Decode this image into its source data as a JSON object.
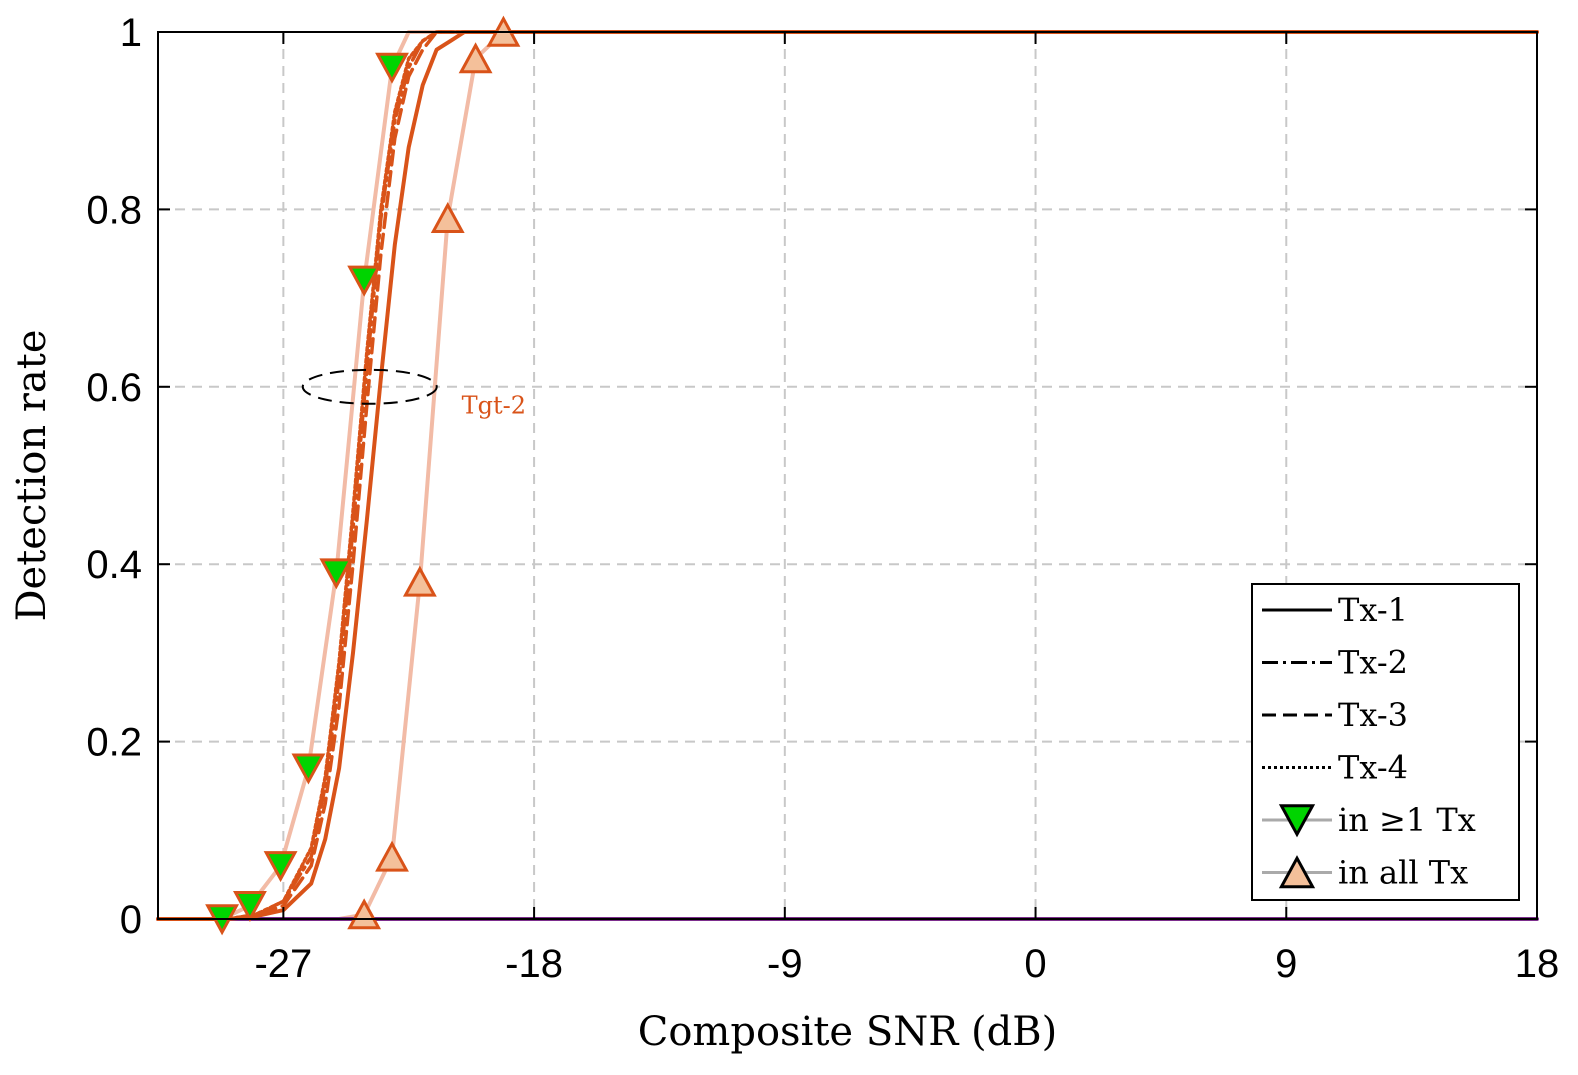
{
  "chart_data": {
    "type": "line",
    "xlabel": "Composite SNR (dB)",
    "ylabel": "Detection rate",
    "xlim": [
      -31.5,
      18
    ],
    "ylim": [
      0,
      1
    ],
    "xticks": [
      -27,
      -18,
      -9,
      0,
      9,
      18
    ],
    "yticks": [
      0,
      0.2,
      0.4,
      0.6,
      0.8,
      1
    ],
    "xtick_labels": [
      "-27",
      "-18",
      "-9",
      "0",
      "9",
      "18"
    ],
    "ytick_labels": [
      "0",
      "0.2",
      "0.4",
      "0.6",
      "0.8",
      "1"
    ],
    "grid": true,
    "legend_position": "bottom-right",
    "colors": {
      "main": "#d95319",
      "envelope": "#f2bba6",
      "purple": "#7e2f8e",
      "grid": "#c8c8c8",
      "marker_down_fill": "#00d400",
      "marker_up_fill": "#f4c09a"
    },
    "annotation": {
      "text": "Tgt-2",
      "x": -20.6,
      "y": 0.57
    },
    "series": [
      {
        "name": "Tx-1",
        "style": "solid",
        "color": "#d95319",
        "x": [
          -31.5,
          -29,
          -28,
          -27,
          -26,
          -25.5,
          -25,
          -24.5,
          -24,
          -23.5,
          -23,
          -22.5,
          -22,
          -21.5,
          -21,
          -20.5,
          -20,
          -19.5,
          -18,
          18
        ],
        "y": [
          0,
          0,
          0.003,
          0.01,
          0.04,
          0.09,
          0.17,
          0.3,
          0.45,
          0.61,
          0.76,
          0.87,
          0.94,
          0.98,
          0.99,
          1,
          1,
          1,
          1,
          1
        ]
      },
      {
        "name": "Tx-2",
        "style": "dashdot",
        "color": "#d95319",
        "x": [
          -31.5,
          -29,
          -28,
          -27,
          -26,
          -25.5,
          -25,
          -24.5,
          -24,
          -23.5,
          -23,
          -22.5,
          -22,
          -21.5,
          -21,
          -20.5,
          -20,
          -19.5,
          -18,
          18
        ],
        "y": [
          0,
          0,
          0.005,
          0.02,
          0.07,
          0.15,
          0.27,
          0.44,
          0.62,
          0.79,
          0.9,
          0.96,
          0.99,
          1,
          1,
          1,
          1,
          1,
          1,
          1
        ]
      },
      {
        "name": "Tx-3",
        "style": "dashed",
        "color": "#d95319",
        "x": [
          -31.5,
          -29,
          -28,
          -27,
          -26,
          -25.5,
          -25,
          -24.5,
          -24,
          -23.5,
          -23,
          -22.5,
          -22,
          -21.5,
          -21,
          -20.5,
          -20,
          -19.5,
          -18,
          18
        ],
        "y": [
          0,
          0,
          0.004,
          0.015,
          0.06,
          0.13,
          0.24,
          0.4,
          0.58,
          0.75,
          0.88,
          0.95,
          0.98,
          1,
          1,
          1,
          1,
          1,
          1,
          1
        ]
      },
      {
        "name": "Tx-4",
        "style": "dotted",
        "color": "#d95319",
        "x": [
          -31.5,
          -29,
          -28,
          -27,
          -26,
          -25.5,
          -25,
          -24.5,
          -24,
          -23.5,
          -23,
          -22.5,
          -22,
          -21.5,
          -21,
          -20.5,
          -20,
          -19.5,
          -18,
          18
        ],
        "y": [
          0,
          0,
          0.005,
          0.02,
          0.08,
          0.16,
          0.29,
          0.46,
          0.64,
          0.8,
          0.91,
          0.97,
          0.99,
          1,
          1,
          1,
          1,
          1,
          1,
          1
        ]
      },
      {
        "name": "in ≥1 Tx",
        "style": "solid",
        "color": "#f2bba6",
        "marker": "triangle-down",
        "x": [
          -31.5,
          -29.2,
          -28.2,
          -27.1,
          -26.1,
          -25.1,
          -24.1,
          -23.1,
          -22.5,
          -18,
          18
        ],
        "y": [
          0,
          0,
          0.015,
          0.06,
          0.17,
          0.39,
          0.72,
          0.96,
          1,
          1,
          1
        ],
        "marker_x": [
          -29.2,
          -28.2,
          -27.1,
          -26.1,
          -25.1,
          -24.1,
          -23.1
        ],
        "marker_y": [
          0,
          0.015,
          0.06,
          0.17,
          0.39,
          0.72,
          0.96
        ]
      },
      {
        "name": "in all Tx",
        "style": "solid",
        "color": "#f2bba6",
        "marker": "triangle-up",
        "x": [
          -31.5,
          -25,
          -24.1,
          -23.1,
          -22.1,
          -21.1,
          -20.1,
          -19.1,
          -18,
          18
        ],
        "y": [
          0,
          0,
          0.005,
          0.07,
          0.38,
          0.79,
          0.97,
          1,
          1,
          1
        ],
        "marker_x": [
          -24.1,
          -23.1,
          -22.1,
          -21.1,
          -20.1,
          -19.1
        ],
        "marker_y": [
          0.005,
          0.07,
          0.38,
          0.79,
          0.97,
          1
        ]
      },
      {
        "name": "",
        "style": "solid",
        "color": "#7e2f8e",
        "x": [
          -31.5,
          18
        ],
        "y": [
          0,
          0
        ]
      }
    ],
    "legend": [
      {
        "label": "Tx-1",
        "style": "solid"
      },
      {
        "label": "Tx-2",
        "style": "dashdot"
      },
      {
        "label": "Tx-3",
        "style": "dashed"
      },
      {
        "label": "Tx-4",
        "style": "dotted"
      },
      {
        "label": "in ≥1 Tx",
        "style": "marker-down"
      },
      {
        "label": "in all Tx",
        "style": "marker-up"
      }
    ]
  }
}
